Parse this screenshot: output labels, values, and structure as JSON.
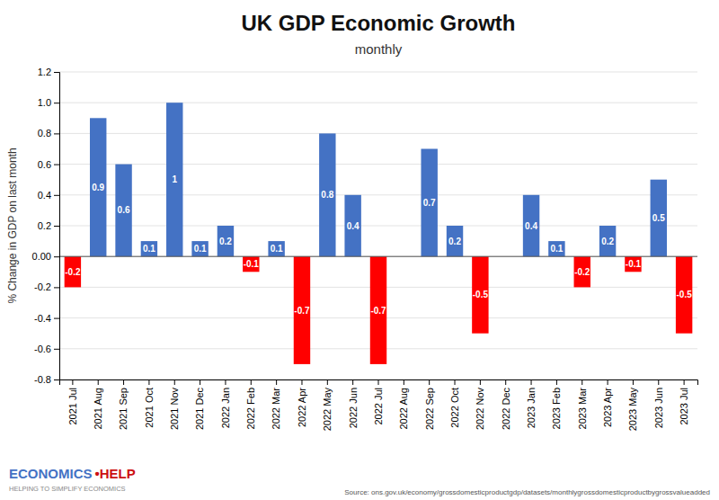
{
  "chart_data": {
    "type": "bar",
    "title": "UK GDP Economic Growth",
    "subtitle": "monthly",
    "ylabel": "% Change in GDP on last month",
    "annotations": [
      "Source: ons.gov.uk/economy/grossdomesticproductgdp/datasets/monthlygrossdomesticproductbygrossvalueadded",
      "ECONOMICS",
      "•HELP",
      "HELPING TO SIMPLIFY ECONOMICS"
    ],
    "categories": [
      "2021 Jul",
      "2021 Aug",
      "2021 Sep",
      "2021 Oct",
      "2021 Nov",
      "2021 Dec",
      "2022 Jan",
      "2022 Feb",
      "2022 Mar",
      "2022 Apr",
      "2022 May",
      "2022 Jun",
      "2022 Jul",
      "2022 Aug",
      "2022 Sep",
      "2022 Oct",
      "2022 Nov",
      "2022 Dec",
      "2023 Jan",
      "2023 Feb",
      "2023 Mar",
      "2023 Apr",
      "2023 May",
      "2023 Jun",
      "2023 Jul"
    ],
    "values": [
      -0.2,
      0.9,
      0.6,
      0.1,
      1.0,
      0.1,
      0.2,
      -0.1,
      0.1,
      -0.7,
      0.8,
      0.4,
      -0.7,
      0.0,
      0.7,
      0.2,
      -0.5,
      0.0,
      0.4,
      0.1,
      -0.2,
      0.2,
      -0.1,
      0.5,
      -0.5
    ],
    "value_labels": [
      "-0.2",
      "0.9",
      "0.6",
      "0.1",
      "1",
      "0.1",
      "0.2",
      "-0.1",
      "0.1",
      "-0.7",
      "0.8",
      "0.4",
      "-0.7",
      null,
      "0.7",
      "0.2",
      "-0.5",
      null,
      "0.4",
      "0.1",
      "-0.2",
      "0.2",
      "-0.1",
      "0.5",
      "-0.5"
    ],
    "data_labels": true,
    "colors": [
      "#FF0000",
      "#4472C4",
      "#4472C4",
      "#4472C4",
      "#4472C4",
      "#4472C4",
      "#4472C4",
      "#FF0000",
      "#4472C4",
      "#FF0000",
      "#4472C4",
      "#4472C4",
      "#FF0000",
      "#4472C4",
      "#4472C4",
      "#4472C4",
      "#FF0000",
      "#4472C4",
      "#4472C4",
      "#4472C4",
      "#FF0000",
      "#4472C4",
      "#FF0000",
      "#4472C4",
      "#FF0000"
    ],
    "ylim": [
      -0.8,
      1.2
    ],
    "yticks": [
      -0.8,
      -0.6,
      -0.4,
      -0.2,
      {
        "value": 0.0,
        "label": "0.00"
      },
      0.2,
      0.4,
      0.6,
      0.8,
      {
        "value": 1.0,
        "label": "1.0"
      },
      1.2
    ],
    "grid": true
  }
}
